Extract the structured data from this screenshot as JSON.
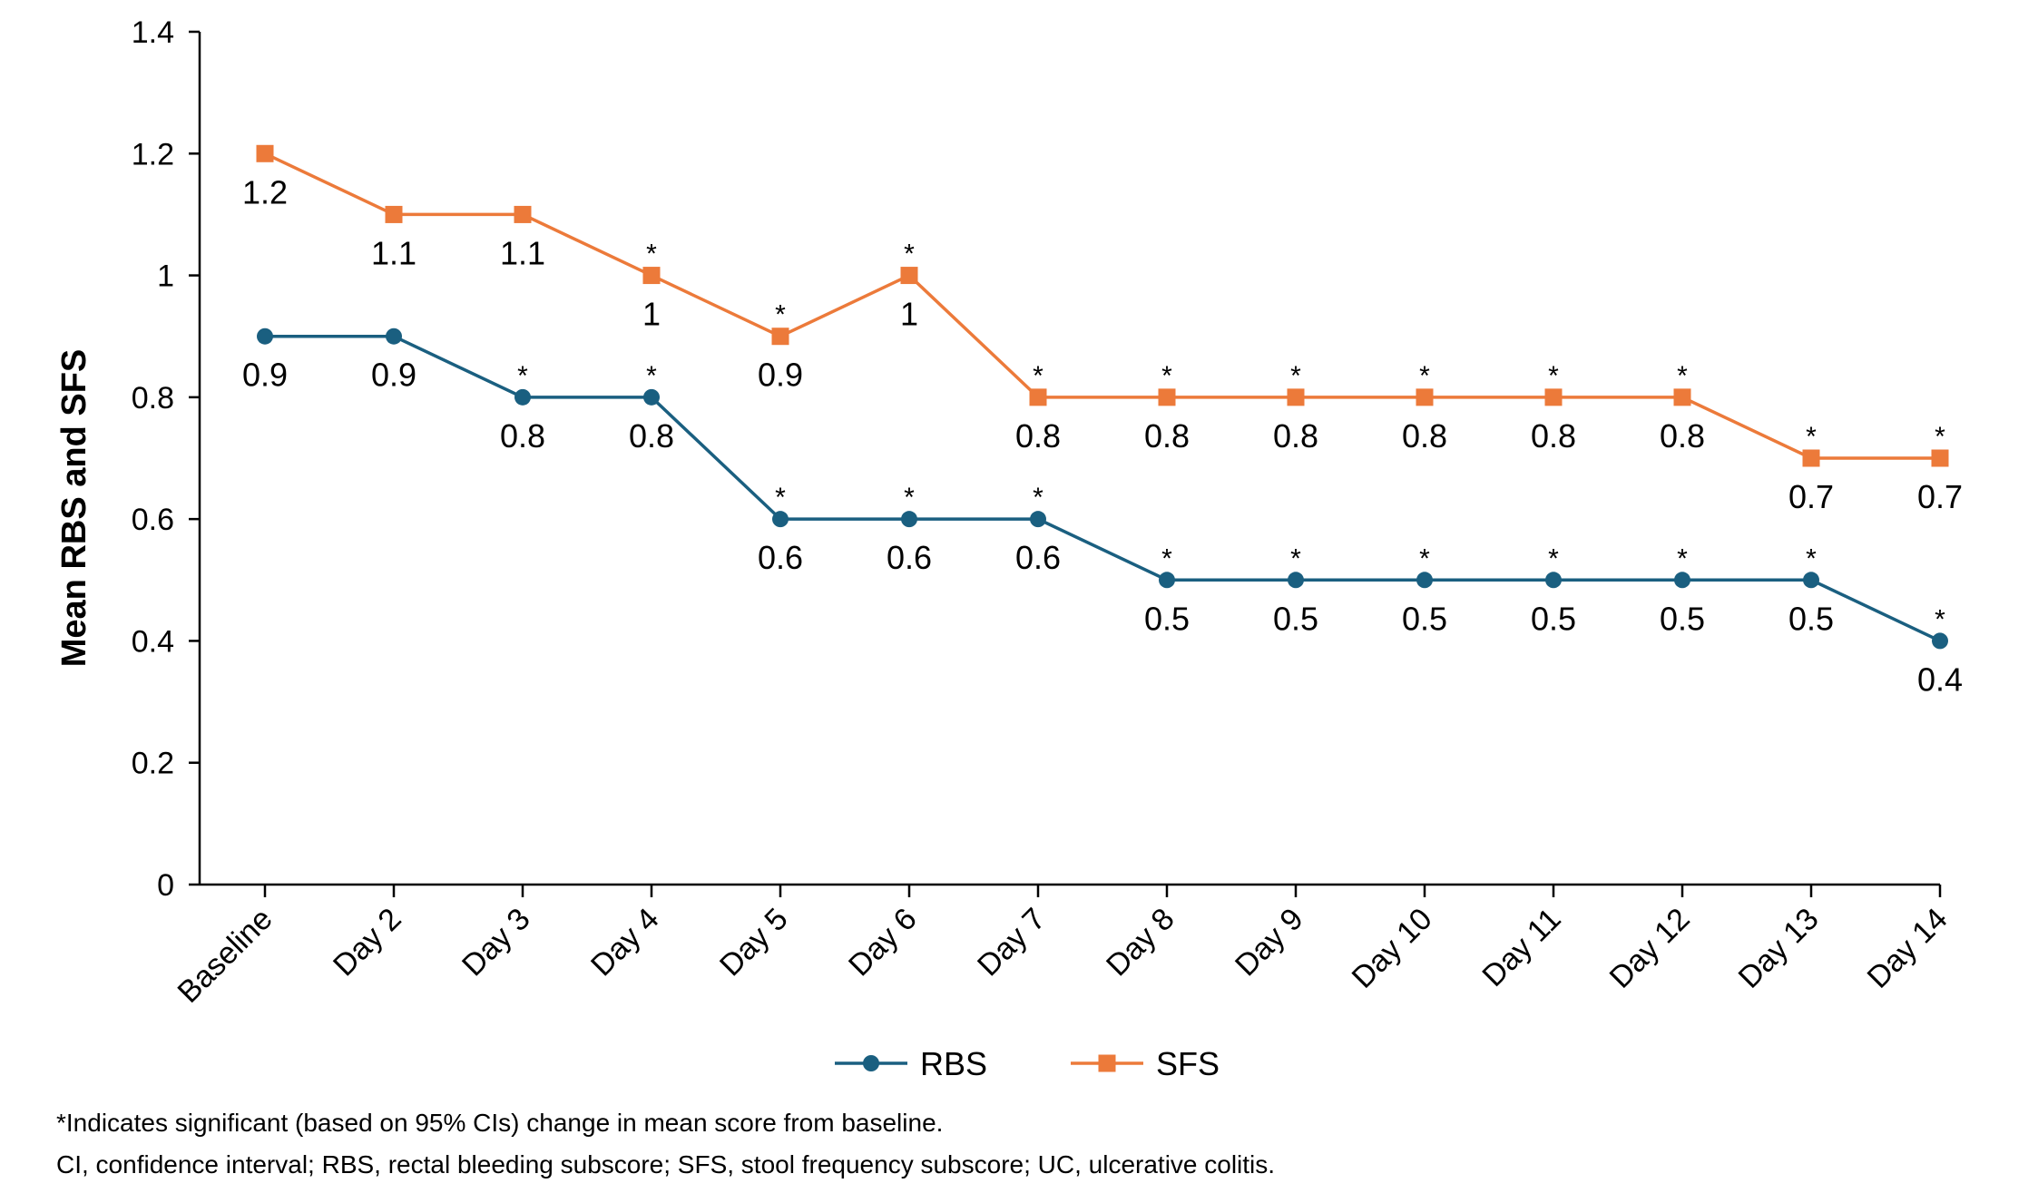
{
  "chart_data": {
    "type": "line",
    "ylabel": "Mean RBS and SFS",
    "xlabel": "",
    "ylim": [
      0,
      1.4
    ],
    "yticks": [
      0,
      0.2,
      0.4,
      0.6,
      0.8,
      1,
      1.2,
      1.4
    ],
    "ytick_labels": [
      "0",
      "0.2",
      "0.4",
      "0.6",
      "0.8",
      "1",
      "1.2",
      "1.4"
    ],
    "categories": [
      "Baseline",
      "Day 2",
      "Day 3",
      "Day 4",
      "Day 5",
      "Day 6",
      "Day 7",
      "Day 8",
      "Day 9",
      "Day 10",
      "Day 11",
      "Day 12",
      "Day 13",
      "Day 14"
    ],
    "legend_position": "bottom-center",
    "grid": false,
    "significance_marker": "*",
    "series": [
      {
        "name": "RBS",
        "color": "#1a5f80",
        "marker": "circle",
        "values": [
          0.9,
          0.9,
          0.8,
          0.8,
          0.6,
          0.6,
          0.6,
          0.5,
          0.5,
          0.5,
          0.5,
          0.5,
          0.5,
          0.4
        ],
        "labels": [
          "0.9",
          "0.9",
          "0.8",
          "0.8",
          "0.6",
          "0.6",
          "0.6",
          "0.5",
          "0.5",
          "0.5",
          "0.5",
          "0.5",
          "0.5",
          "0.4"
        ],
        "significant": [
          false,
          false,
          true,
          true,
          true,
          true,
          true,
          true,
          true,
          true,
          true,
          true,
          true,
          true
        ]
      },
      {
        "name": "SFS",
        "color": "#ec7a3a",
        "marker": "square",
        "values": [
          1.2,
          1.1,
          1.1,
          1.0,
          0.9,
          1.0,
          0.8,
          0.8,
          0.8,
          0.8,
          0.8,
          0.8,
          0.7,
          0.7
        ],
        "labels": [
          "1.2",
          "1.1",
          "1.1",
          "1",
          "0.9",
          "1",
          "0.8",
          "0.8",
          "0.8",
          "0.8",
          "0.8",
          "0.8",
          "0.7",
          "0.7"
        ],
        "significant": [
          false,
          false,
          false,
          true,
          true,
          true,
          true,
          true,
          true,
          true,
          true,
          true,
          true,
          true
        ]
      }
    ]
  },
  "footnotes": {
    "line1": "*Indicates significant (based on 95% CIs) change in mean score from baseline.",
    "line2": "CI, confidence interval; RBS, rectal bleeding subscore; SFS, stool frequency subscore; UC, ulcerative colitis."
  }
}
